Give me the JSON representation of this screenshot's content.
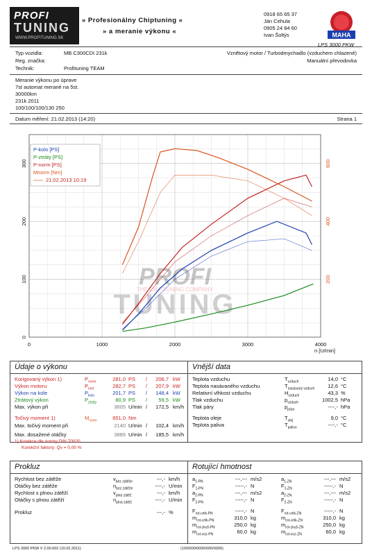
{
  "header": {
    "logo_top": "PROFI",
    "logo_bottom": "TUNING",
    "logo_url": "WWW.PROFITUNING.SK",
    "banner_line1": "» Profesionálny Chiptuning «",
    "banner_line2": "» a meranie výkonu «",
    "contact": [
      "0918 65 65 37",
      "Ján Cehula",
      "0905 24 84 60",
      "Ivan Šoltýs"
    ],
    "maha_label": "MAHA",
    "maha_model": "LPS 3000 PKW"
  },
  "vehicle": {
    "typ_label": "Typ vozidla:",
    "typ_value": "MB C300CDI 231k",
    "reg_label": "Reg. značka:",
    "reg_value": "",
    "tech_label": "Technik:",
    "tech_value": "Profituning TEAM",
    "engine": "Vznětový motor / Turbodmychadlo (vzduchem chlazené)",
    "gearbox": "Manuální převodovka"
  },
  "notes": [
    "Meranie výkonu po úprave",
    "7st automat merané na 5st.",
    "30000km",
    "231k 2011",
    "100/100/100/130 250"
  ],
  "measure": {
    "date_label": "Datum měření: 21.02.2013 (14:20)",
    "page_label": "Strana 1"
  },
  "chart_data": {
    "type": "line",
    "x_label": "n [U/min]",
    "xlim": [
      0,
      4000
    ],
    "x_ticks": [
      0,
      1000,
      2000,
      3000,
      4000
    ],
    "y_left_ticks": [
      0,
      100,
      200,
      300
    ],
    "ylim_left": [
      0,
      350
    ],
    "y_right_ticks": [
      200,
      400,
      600
    ],
    "ylim_right": [
      0,
      700
    ],
    "legend": [
      "P-kolo [PS]",
      "P-ztráty [PS]",
      "P-norm [PS]",
      "Mnorm [Nm]",
      "21.02.2013 10:19"
    ],
    "colors": {
      "kolo": "#1c3fb0",
      "ztraty": "#1a8a1a",
      "norm": "#c22222",
      "mnorm": "#d9531e",
      "ref": "#e0906a"
    },
    "series": [
      {
        "name": "P-kolo [PS]",
        "axis": "left",
        "x": [
          1280,
          1500,
          1800,
          2100,
          2500,
          3000,
          3400,
          3800,
          3880
        ],
        "y": [
          12,
          40,
          85,
          118,
          150,
          180,
          200,
          180,
          160
        ]
      },
      {
        "name": "P-ztráty [PS]",
        "axis": "left",
        "x": [
          1280,
          1600,
          2000,
          2500,
          3000,
          3500,
          3900
        ],
        "y": [
          10,
          16,
          26,
          40,
          55,
          72,
          92
        ]
      },
      {
        "name": "P-norm [PS]",
        "axis": "left",
        "x": [
          1280,
          1500,
          1800,
          2100,
          2500,
          3000,
          3500,
          3800,
          3880
        ],
        "y": [
          22,
          58,
          110,
          155,
          195,
          240,
          270,
          280,
          260
        ]
      },
      {
        "name": "Mnorm [Nm]",
        "axis": "right",
        "x": [
          1280,
          1500,
          1700,
          1800,
          2000,
          2300,
          2600,
          3000,
          3500,
          3880
        ],
        "y": [
          250,
          380,
          560,
          640,
          651,
          645,
          620,
          580,
          520,
          470
        ]
      },
      {
        "name": "P-kolo ref",
        "axis": "left",
        "x": [
          1280,
          1600,
          2000,
          2500,
          3000,
          3500,
          3880
        ],
        "y": [
          14,
          50,
          100,
          140,
          165,
          170,
          150
        ]
      },
      {
        "name": "P-norm ref",
        "axis": "left",
        "x": [
          1280,
          1600,
          2000,
          2500,
          3000,
          3500,
          3880
        ],
        "y": [
          25,
          70,
          130,
          175,
          210,
          240,
          225
        ]
      },
      {
        "name": "Mnorm ref",
        "axis": "right",
        "x": [
          1280,
          1500,
          1800,
          2000,
          2500,
          3000,
          3500,
          3880
        ],
        "y": [
          220,
          330,
          500,
          560,
          560,
          540,
          480,
          420
        ]
      }
    ]
  },
  "udaje": {
    "title": "Údaje o výkonu",
    "rows": [
      {
        "label": "Korigovaný výkon",
        "sup": "1)",
        "sym": "P",
        "sub": "norm",
        "v1": "281,0",
        "u1": "PS",
        "sep": "/",
        "v2": "206,7",
        "u2": "kW",
        "cls": "red"
      },
      {
        "label": "Výkon motoru",
        "sup": "",
        "sym": "P",
        "sub": "mot",
        "v1": "282,7",
        "u1": "PS",
        "sep": "/",
        "v2": "207,9",
        "u2": "kW",
        "cls": "red"
      },
      {
        "label": "Výkon na kole",
        "sup": "",
        "sym": "P",
        "sub": "kolo",
        "v1": "201,7",
        "u1": "PS",
        "sep": "/",
        "v2": "148,4",
        "u2": "kW",
        "cls": "blue"
      },
      {
        "label": "Ztrátový výkon",
        "sup": "",
        "sym": "P",
        "sub": "ztráty",
        "v1": "80,9",
        "u1": "PS",
        "sep": "/",
        "v2": "59,5",
        "u2": "kW",
        "cls": "green"
      },
      {
        "label": "Max. výkon při",
        "sup": "",
        "sym": "",
        "sub": "",
        "v1": "3605",
        "u1": "U/min",
        "sep": "/",
        "v2": "172,5",
        "u2": "km/h",
        "cls": ""
      }
    ],
    "torque": {
      "label": "Točivý moment",
      "sup": "1)",
      "sym": "M",
      "sub": "norm",
      "v1": "651,0",
      "u1": "Nm"
    },
    "torque_rows": [
      {
        "label": "Max. točivý moment při",
        "v1": "2140",
        "u1": "U/min",
        "sep": "/",
        "v2": "102,4",
        "u2": "km/h"
      },
      {
        "label": "Max. dosažené otáčky",
        "v1": "3885",
        "u1": "U/min",
        "sep": "/",
        "v2": "185,5",
        "u2": "km/h"
      }
    ],
    "footnote1": "1) Korekce dle normy DIN 70020",
    "footnote2": "Korekční faktory: Qv =  0,00 %"
  },
  "vnejsi": {
    "title": "Vnější data",
    "rows": [
      {
        "label": "Teplota vzduchu",
        "sym": "T",
        "sub": "vzduch",
        "val": "14,0",
        "unit": "°C"
      },
      {
        "label": "Teplota nasávaného vzduchu",
        "sym": "T",
        "sub": "nasávaný vzduch",
        "val": "12,6",
        "unit": "°C"
      },
      {
        "label": "Relativní vlhkost vzduchu",
        "sym": "H",
        "sub": "vzduch",
        "val": "43,3",
        "unit": "%"
      },
      {
        "label": "Tlak vzduchu",
        "sym": "p",
        "sub": "vzduch",
        "val": "1002,5",
        "unit": "hPa"
      },
      {
        "label": "Tlak páry",
        "sym": "p",
        "sub": "pára",
        "val": "----,-",
        "unit": "hPa"
      },
      {
        "label": "Teplota oleje",
        "sym": "T",
        "sub": "olej",
        "val": "9,0",
        "unit": "°C"
      },
      {
        "label": "Teplota paliva",
        "sym": "T",
        "sub": "palivo",
        "val": "----,-",
        "unit": "°C"
      }
    ]
  },
  "prokluz": {
    "title": "Prokluz",
    "rows": [
      {
        "label": "Rychlost bez zátěže",
        "sym": "v",
        "sub": "bez zátěže",
        "val": "---,-",
        "unit": "km/h"
      },
      {
        "label": "Otáčky bez zátěže",
        "sym": "n",
        "sub": "bez zátěže",
        "val": "----,-",
        "unit": "U/min"
      },
      {
        "label": "Rychlost s plnou zátěží",
        "sym": "v",
        "sub": "plná zátěž",
        "val": "---,-",
        "unit": "km/h"
      },
      {
        "label": "Otáčky s plnou zátěží",
        "sym": "n",
        "sub": "plná zátěž",
        "val": "----,-",
        "unit": "U/min"
      },
      {
        "label": "Prokluz",
        "sym": "",
        "sub": "",
        "val": "---,-",
        "unit": "%"
      }
    ]
  },
  "rotacni": {
    "title": "Rotující hmotnost",
    "left": [
      {
        "sym": "a",
        "sub": "1-PN",
        "val": "---,---",
        "unit": "m/s2"
      },
      {
        "sym": "F",
        "sub": "1-PN",
        "val": "-----,-",
        "unit": "N"
      },
      {
        "sym": "a",
        "sub": "2-PN",
        "val": "---,---",
        "unit": "m/s2"
      },
      {
        "sym": "F",
        "sub": "2-PN",
        "val": "-----,-",
        "unit": "N"
      },
      {
        "sym": "F",
        "sub": "rot-celk-PN",
        "val": "-----,-",
        "unit": "N"
      },
      {
        "sym": "m",
        "sub": "rot-celk-PN",
        "val": "310,0",
        "unit": "kg"
      },
      {
        "sym": "m",
        "sub": "rot-zkuš-PN",
        "val": "250,0",
        "unit": "kg"
      },
      {
        "sym": "m",
        "sub": "rot-voz-PN",
        "val": "60,0",
        "unit": "kg"
      }
    ],
    "right": [
      {
        "sym": "a",
        "sub": "1-ZN",
        "val": "---,---",
        "unit": "m/s2"
      },
      {
        "sym": "F",
        "sub": "1-ZN",
        "val": "-----,-",
        "unit": "N"
      },
      {
        "sym": "a",
        "sub": "2-ZN",
        "val": "---,---",
        "unit": "m/s2"
      },
      {
        "sym": "F",
        "sub": "2-ZN",
        "val": "-----,-",
        "unit": "N"
      },
      {
        "sym": "F",
        "sub": "rot-celk-ZN",
        "val": "-----,-",
        "unit": "N"
      },
      {
        "sym": "m",
        "sub": "rot-celk-ZN",
        "val": "310,0",
        "unit": "kg"
      },
      {
        "sym": "m",
        "sub": "rot-zkuš-ZN",
        "val": "250,0",
        "unit": "kg"
      },
      {
        "sym": "m",
        "sub": "rot-voz-ZN",
        "val": "60,0",
        "unit": "kg"
      }
    ]
  },
  "watermark": {
    "top": "PROFI",
    "bottom": "TUNING",
    "tagline": "THE CHIPTUNING COMPANY"
  },
  "footer": {
    "left": "LPS 3000 PKW V 2.00.002 (10.02.2011)",
    "center": "(100/000/0000/000/0000)"
  }
}
